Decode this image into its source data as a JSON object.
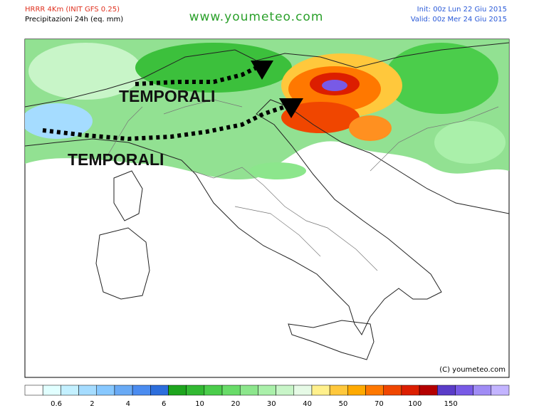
{
  "header": {
    "model": "HRRR 4Km (INIT GFS 0.25)",
    "product": "Precipitazioni 24h (eq. mm)",
    "site": "www.youmeteo.com",
    "init": "Init: 00z Lun  22 Giu 2015",
    "valid": "Valid: 00z Mer  24 Giu 2015"
  },
  "annotations": [
    "TEMPORALI",
    "TEMPORALI"
  ],
  "copyright": "(C) youmeteo.com",
  "legend": {
    "labels": [
      "0.6",
      "2",
      "4",
      "6",
      "10",
      "20",
      "30",
      "40",
      "50",
      "70",
      "100",
      "150"
    ],
    "colors": [
      "#ffffff",
      "#e1ffff",
      "#c3f0ff",
      "#a5dcff",
      "#87c8ff",
      "#69aaf5",
      "#4b8cf0",
      "#2d6edc",
      "#1ea51e",
      "#32b932",
      "#4bcd4b",
      "#69dc69",
      "#8ce68c",
      "#aaf0aa",
      "#c8f5c8",
      "#e6fae6",
      "#fff08c",
      "#ffc83c",
      "#ffaa00",
      "#ff7800",
      "#f04600",
      "#dc1e00",
      "#b40000",
      "#5a3cc8",
      "#785ae6",
      "#a08cf5",
      "#c3b4ff"
    ]
  }
}
